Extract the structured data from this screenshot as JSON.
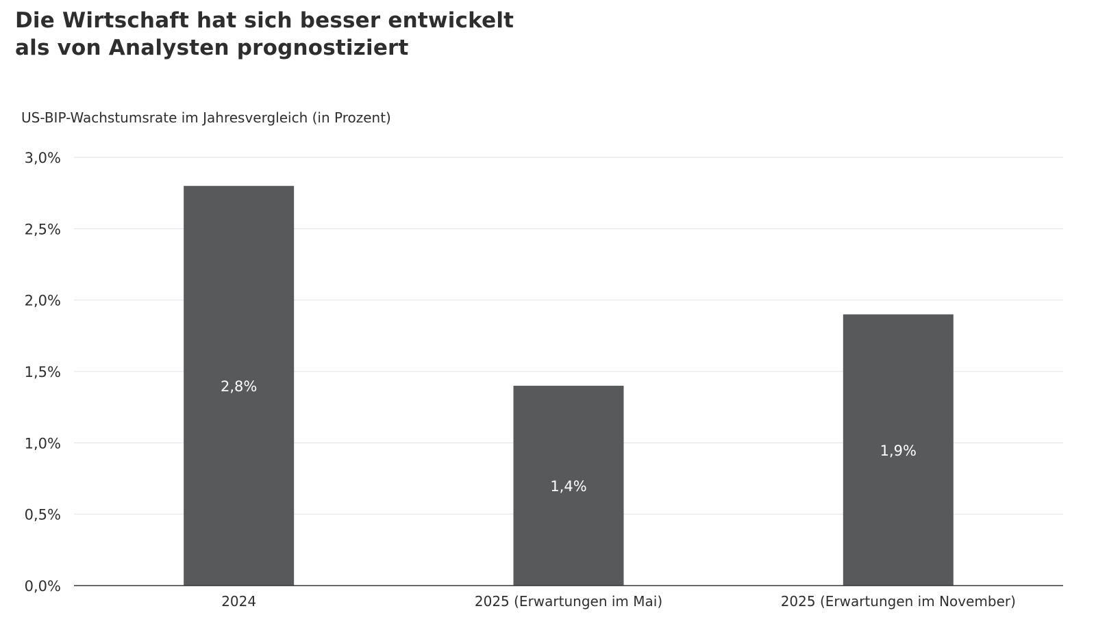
{
  "chart_data": {
    "type": "bar",
    "title_line1": "Die Wirtschaft hat sich besser entwickelt",
    "title_line2": "als von Analysten prognostiziert",
    "subtitle": "US-BIP-Wachstumsrate im Jahresvergleich (in Prozent)",
    "xlabel": "",
    "ylabel": "",
    "categories": [
      "2024",
      "2025 (Erwartungen im Mai)",
      "2025 (Erwartungen im November)"
    ],
    "values": [
      2.8,
      1.4,
      1.9
    ],
    "value_labels": [
      "2,8%",
      "1,4%",
      "1,9%"
    ],
    "ylim": [
      0,
      3.0
    ],
    "yticks": [
      0,
      0.5,
      1.0,
      1.5,
      2.0,
      2.5,
      3.0
    ],
    "ytick_labels": [
      "0,0%",
      "0,5%",
      "1,0%",
      "1,5%",
      "2,0%",
      "2,5%",
      "3,0%"
    ],
    "grid": true,
    "legend": "none",
    "colors": {
      "bar": "#58595b",
      "bar_label": "#ffffff",
      "grid": "#e3e3e3",
      "axis": "#333333",
      "text": "#2e2e2e"
    }
  }
}
